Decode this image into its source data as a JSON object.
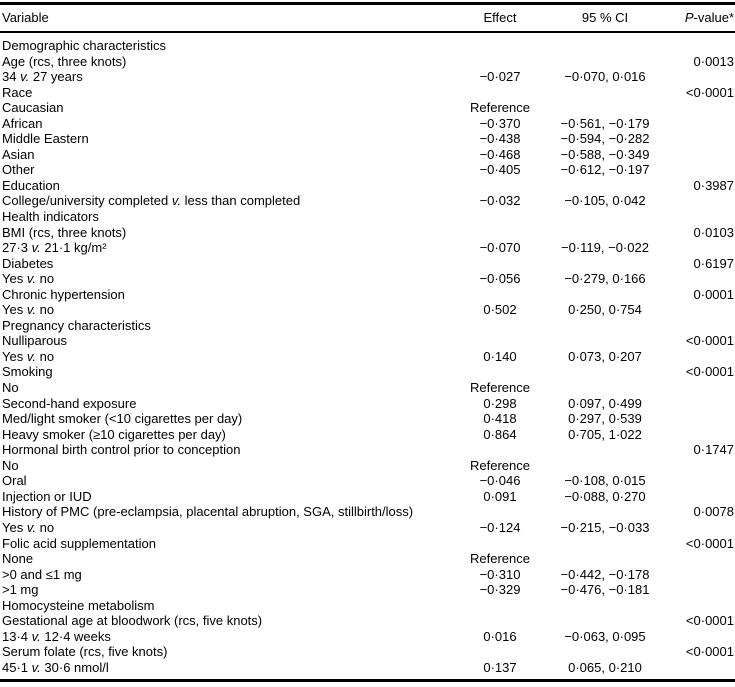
{
  "page": {
    "background_color": "#ffffff",
    "text_color": "#000000",
    "rule_color": "#000000"
  },
  "table": {
    "columns": [
      {
        "label": "Variable",
        "align": "left"
      },
      {
        "label": "Effect",
        "align": "center"
      },
      {
        "label": "95 % CI",
        "align": "center"
      },
      {
        "label": "P-value*",
        "align": "right"
      }
    ],
    "rows": [
      {
        "label": "Demographic characteristics",
        "indent": 0,
        "effect": "",
        "ci": "",
        "p": ""
      },
      {
        "label": "Age (rcs, three knots)",
        "indent": 1,
        "effect": "",
        "ci": "",
        "p": "0·0013"
      },
      {
        "label": "34 v. 27 years",
        "indent": 2,
        "effect": "−0·027",
        "ci": "−0·070, 0·016",
        "p": ""
      },
      {
        "label": "Race",
        "indent": 1,
        "effect": "",
        "ci": "",
        "p": "<0·0001"
      },
      {
        "label": "Caucasian",
        "indent": 2,
        "effect": "Reference",
        "ci": "",
        "p": ""
      },
      {
        "label": "African",
        "indent": 2,
        "effect": "−0·370",
        "ci": "−0·561, −0·179",
        "p": ""
      },
      {
        "label": "Middle Eastern",
        "indent": 2,
        "effect": "−0·438",
        "ci": "−0·594, −0·282",
        "p": ""
      },
      {
        "label": "Asian",
        "indent": 2,
        "effect": "−0·468",
        "ci": "−0·588, −0·349",
        "p": ""
      },
      {
        "label": "Other",
        "indent": 2,
        "effect": "−0·405",
        "ci": "−0·612, −0·197",
        "p": ""
      },
      {
        "label": "Education",
        "indent": 1,
        "effect": "",
        "ci": "",
        "p": "0·3987"
      },
      {
        "label": "College/university completed v. less than completed",
        "indent": 2,
        "effect": "−0·032",
        "ci": "−0·105, 0·042",
        "p": ""
      },
      {
        "label": "Health indicators",
        "indent": 0,
        "effect": "",
        "ci": "",
        "p": ""
      },
      {
        "label": "BMI (rcs, three knots)",
        "indent": 1,
        "effect": "",
        "ci": "",
        "p": "0·0103"
      },
      {
        "label": "27·3 v. 21·1 kg/m²",
        "indent": 2,
        "effect": "−0·070",
        "ci": "−0·119, −0·022",
        "p": ""
      },
      {
        "label": "Diabetes",
        "indent": 1,
        "effect": "",
        "ci": "",
        "p": "0·6197"
      },
      {
        "label": "Yes v. no",
        "indent": 2,
        "effect": "−0·056",
        "ci": "−0·279, 0·166",
        "p": ""
      },
      {
        "label": "Chronic hypertension",
        "indent": 1,
        "effect": "",
        "ci": "",
        "p": "0·0001"
      },
      {
        "label": "Yes v. no",
        "indent": 2,
        "effect": "0·502",
        "ci": "0·250, 0·754",
        "p": ""
      },
      {
        "label": "Pregnancy characteristics",
        "indent": 0,
        "effect": "",
        "ci": "",
        "p": ""
      },
      {
        "label": "Nulliparous",
        "indent": 1,
        "effect": "",
        "ci": "",
        "p": "<0·0001"
      },
      {
        "label": "Yes v. no",
        "indent": 2,
        "effect": "0·140",
        "ci": "0·073, 0·207",
        "p": ""
      },
      {
        "label": "Smoking",
        "indent": 1,
        "effect": "",
        "ci": "",
        "p": "<0·0001"
      },
      {
        "label": "No",
        "indent": 2,
        "effect": "Reference",
        "ci": "",
        "p": ""
      },
      {
        "label": "Second-hand exposure",
        "indent": 2,
        "effect": "0·298",
        "ci": "0·097, 0·499",
        "p": ""
      },
      {
        "label": "Med/light smoker (<10 cigarettes per day)",
        "indent": 2,
        "effect": "0·418",
        "ci": "0·297, 0·539",
        "p": ""
      },
      {
        "label": "Heavy smoker (≥10 cigarettes per day)",
        "indent": 2,
        "effect": "0·864",
        "ci": "0·705, 1·022",
        "p": ""
      },
      {
        "label": "Hormonal birth control prior to conception",
        "indent": 1,
        "effect": "",
        "ci": "",
        "p": "0·1747"
      },
      {
        "label": "No",
        "indent": 2,
        "effect": "Reference",
        "ci": "",
        "p": ""
      },
      {
        "label": "Oral",
        "indent": 2,
        "effect": "−0·046",
        "ci": "−0·108, 0·015",
        "p": ""
      },
      {
        "label": "Injection or IUD",
        "indent": 2,
        "effect": "0·091",
        "ci": "−0·088, 0·270",
        "p": ""
      },
      {
        "label": "History of PMC (pre-eclampsia, placental abruption, SGA, stillbirth/loss)",
        "indent": 1,
        "effect": "",
        "ci": "",
        "p": "0·0078"
      },
      {
        "label": "Yes v. no",
        "indent": 2,
        "effect": "−0·124",
        "ci": "−0·215, −0·033",
        "p": ""
      },
      {
        "label": "Folic acid supplementation",
        "indent": 1,
        "effect": "",
        "ci": "",
        "p": "<0·0001"
      },
      {
        "label": "None",
        "indent": 2,
        "effect": "Reference",
        "ci": "",
        "p": ""
      },
      {
        "label": ">0 and ≤1 mg",
        "indent": 2,
        "effect": "−0·310",
        "ci": "−0·442, −0·178",
        "p": ""
      },
      {
        "label": ">1 mg",
        "indent": 2,
        "effect": "−0·329",
        "ci": "−0·476, −0·181",
        "p": ""
      },
      {
        "label": "Homocysteine metabolism",
        "indent": 0,
        "effect": "",
        "ci": "",
        "p": ""
      },
      {
        "label": "Gestational age at bloodwork (rcs, five knots)",
        "indent": 1,
        "effect": "",
        "ci": "",
        "p": "<0·0001"
      },
      {
        "label": "13·4 v. 12·4 weeks",
        "indent": 2,
        "effect": "0·016",
        "ci": "−0·063, 0·095",
        "p": ""
      },
      {
        "label": "Serum folate (rcs, five knots)",
        "indent": 1,
        "effect": "",
        "ci": "",
        "p": "<0·0001"
      },
      {
        "label": "45·1 v. 30·6 nmol/l",
        "indent": 2,
        "effect": "0·137",
        "ci": "0·065, 0·210",
        "p": ""
      }
    ]
  }
}
